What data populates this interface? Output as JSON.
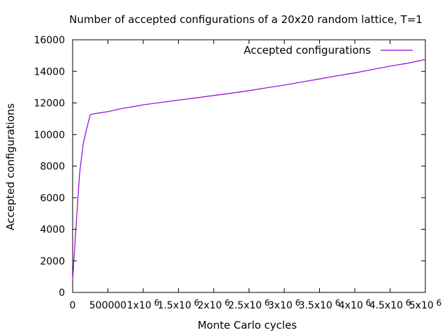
{
  "chart_data": {
    "type": "line",
    "title": "Number of accepted configurations of a 20x20 random lattice, T=1",
    "xlabel": "Monte Carlo cycles",
    "ylabel": "Accepted configurations",
    "xlim": [
      0,
      5000000
    ],
    "ylim": [
      0,
      16000
    ],
    "x_ticks": [
      {
        "value": 0,
        "label": "0",
        "exp": ""
      },
      {
        "value": 500000,
        "label": "500000",
        "exp": ""
      },
      {
        "value": 1000000,
        "label": "1x10",
        "exp": "6"
      },
      {
        "value": 1500000,
        "label": "1.5x10",
        "exp": "6"
      },
      {
        "value": 2000000,
        "label": "2x10",
        "exp": "6"
      },
      {
        "value": 2500000,
        "label": "2.5x10",
        "exp": "6"
      },
      {
        "value": 3000000,
        "label": "3x10",
        "exp": "6"
      },
      {
        "value": 3500000,
        "label": "3.5x10",
        "exp": "6"
      },
      {
        "value": 4000000,
        "label": "4x10",
        "exp": "6"
      },
      {
        "value": 4500000,
        "label": "4.5x10",
        "exp": "6"
      },
      {
        "value": 5000000,
        "label": "5x10",
        "exp": "6"
      }
    ],
    "y_ticks": [
      {
        "value": 0,
        "label": "0"
      },
      {
        "value": 2000,
        "label": "2000"
      },
      {
        "value": 4000,
        "label": "4000"
      },
      {
        "value": 6000,
        "label": "6000"
      },
      {
        "value": 8000,
        "label": "8000"
      },
      {
        "value": 10000,
        "label": "10000"
      },
      {
        "value": 12000,
        "label": "12000"
      },
      {
        "value": 14000,
        "label": "14000"
      },
      {
        "value": 16000,
        "label": "16000"
      }
    ],
    "grid": false,
    "legend_position": "top-right",
    "series": [
      {
        "name": "Accepted configurations",
        "color": "#9400d3",
        "x": [
          0,
          20000,
          50000,
          100000,
          150000,
          200000,
          230000,
          250000,
          280000,
          400000,
          500000,
          600000,
          700000,
          800000,
          900000,
          1000000,
          1250000,
          1500000,
          1750000,
          2000000,
          2250000,
          2500000,
          2750000,
          3000000,
          3250000,
          3500000,
          3750000,
          4000000,
          4250000,
          4500000,
          4750000,
          5000000
        ],
        "y": [
          800,
          2200,
          4300,
          7600,
          9400,
          10400,
          10900,
          11250,
          11300,
          11380,
          11450,
          11550,
          11650,
          11720,
          11800,
          11880,
          12030,
          12180,
          12320,
          12470,
          12620,
          12780,
          12960,
          13130,
          13330,
          13520,
          13720,
          13900,
          14120,
          14330,
          14520,
          14750
        ]
      }
    ]
  }
}
